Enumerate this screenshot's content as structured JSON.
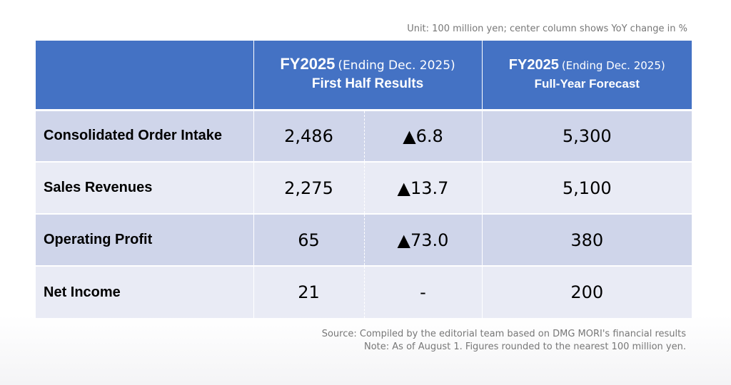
{
  "unit_note": "Unit: 100 million yen; center column shows YoY change in %",
  "header": {
    "corner": "",
    "first_half": {
      "fy": "FY2025",
      "ending": "(Ending Dec. 2025)",
      "title": "First Half Results"
    },
    "full_year": {
      "fy": "FY2025",
      "ending": "(Ending Dec. 2025)",
      "title": "Full-Year Forecast"
    }
  },
  "rows": [
    {
      "label": "Consolidated Order Intake",
      "first_half": "2,486",
      "yoy": "▲6.8",
      "full_year": "5,300"
    },
    {
      "label": "Sales Revenues",
      "first_half": "2,275",
      "yoy": "▲13.7",
      "full_year": "5,100"
    },
    {
      "label": "Operating Profit",
      "first_half": "65",
      "yoy": "▲73.0",
      "full_year": "380"
    },
    {
      "label": "Net Income",
      "first_half": "21",
      "yoy": "-",
      "full_year": "200"
    }
  ],
  "source": "Source: Compiled by the editorial team based on DMG MORI's financial results",
  "note": "Note: As of August 1. Figures rounded to the nearest 100 million yen.",
  "colors": {
    "header_bg": "#4472c4",
    "row_dark": "#cfd5ea",
    "row_light": "#e9ebf5"
  }
}
